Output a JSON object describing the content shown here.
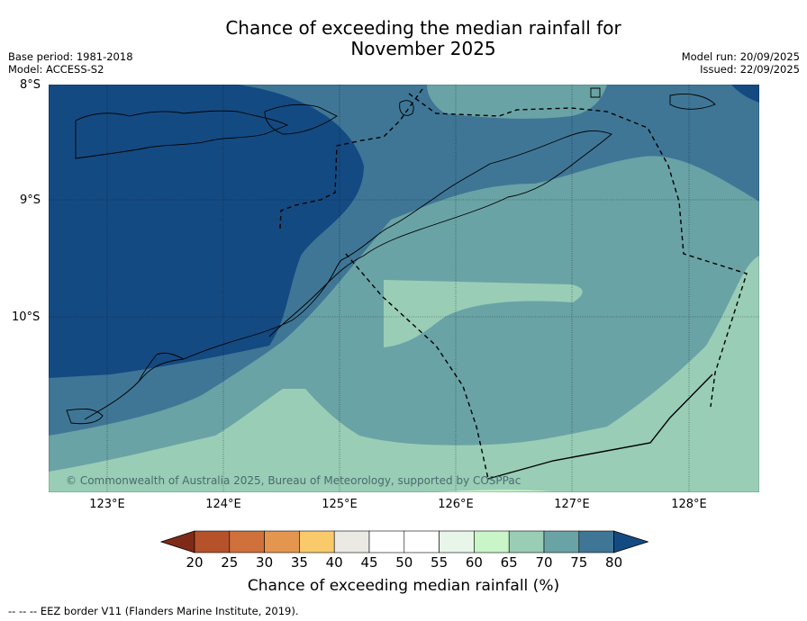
{
  "title_line1": "Chance of exceeding the median rainfall for",
  "title_line2": "November 2025",
  "meta_left": {
    "base_period": "Base period: 1981-2018",
    "model": "Model: ACCESS-S2"
  },
  "meta_right": {
    "model_run": "Model run: 20/09/2025",
    "issued": "Issued: 22/09/2025"
  },
  "map": {
    "lat_labels": [
      "8°S",
      "9°S",
      "10°S"
    ],
    "lon_labels": [
      "123°E",
      "124°E",
      "125°E",
      "126°E",
      "127°E",
      "128°E"
    ],
    "copyright": "© Commonwealth of Australia 2025, Bureau of Meteorology, supported by COSPPac"
  },
  "colorbar": {
    "ticks": [
      "20",
      "25",
      "30",
      "35",
      "40",
      "45",
      "50",
      "55",
      "60",
      "65",
      "70",
      "75",
      "80"
    ],
    "colors": [
      "#7f2a18",
      "#b5522a",
      "#d0703a",
      "#e4964f",
      "#f9c96a",
      "#eae9e4",
      "#ffffff",
      "#ffffff",
      "#e8f5e9",
      "#c9f5c9",
      "#99cdb6",
      "#6aa3a5",
      "#3f7696",
      "#144a82"
    ],
    "label": "Chance of exceeding median rainfall (%)"
  },
  "footnote": "--  --  -- EEZ border V11 (Flanders Marine Institute, 2019).",
  "colors": {
    "band_80": "#144a82",
    "band_75": "#3f7696",
    "band_70": "#6aa3a5",
    "band_65": "#99cdb6",
    "band_60": "#c9f5c9"
  }
}
